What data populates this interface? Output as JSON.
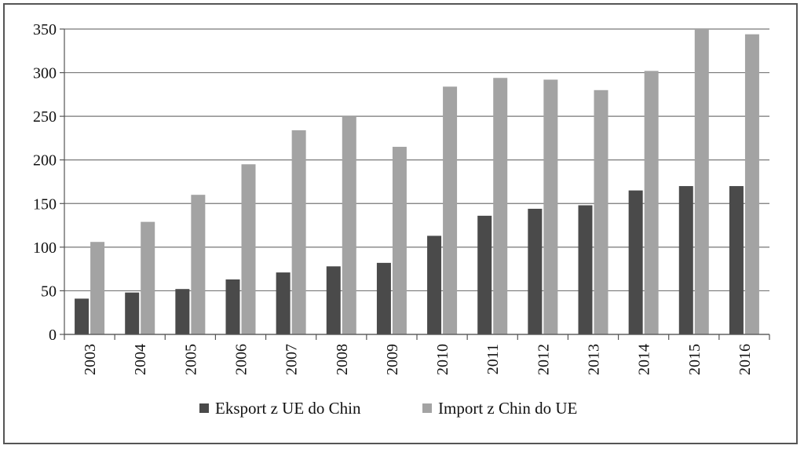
{
  "chart_data": {
    "type": "bar",
    "categories": [
      "2003",
      "2004",
      "2005",
      "2006",
      "2007",
      "2008",
      "2009",
      "2010",
      "2011",
      "2012",
      "2013",
      "2014",
      "2015",
      "2016"
    ],
    "series": [
      {
        "name": "Eksport z UE do Chin",
        "color": "#4a4a4a",
        "values": [
          41,
          48,
          52,
          63,
          71,
          78,
          82,
          113,
          136,
          144,
          148,
          165,
          170,
          170
        ]
      },
      {
        "name": "Import z Chin do UE",
        "color": "#a3a3a3",
        "values": [
          106,
          129,
          160,
          195,
          234,
          250,
          215,
          284,
          294,
          292,
          280,
          302,
          350,
          344
        ]
      }
    ],
    "ylim": [
      0,
      350
    ],
    "yticks": [
      0,
      50,
      100,
      150,
      200,
      250,
      300,
      350
    ],
    "grid": true,
    "legend": "bottom"
  }
}
